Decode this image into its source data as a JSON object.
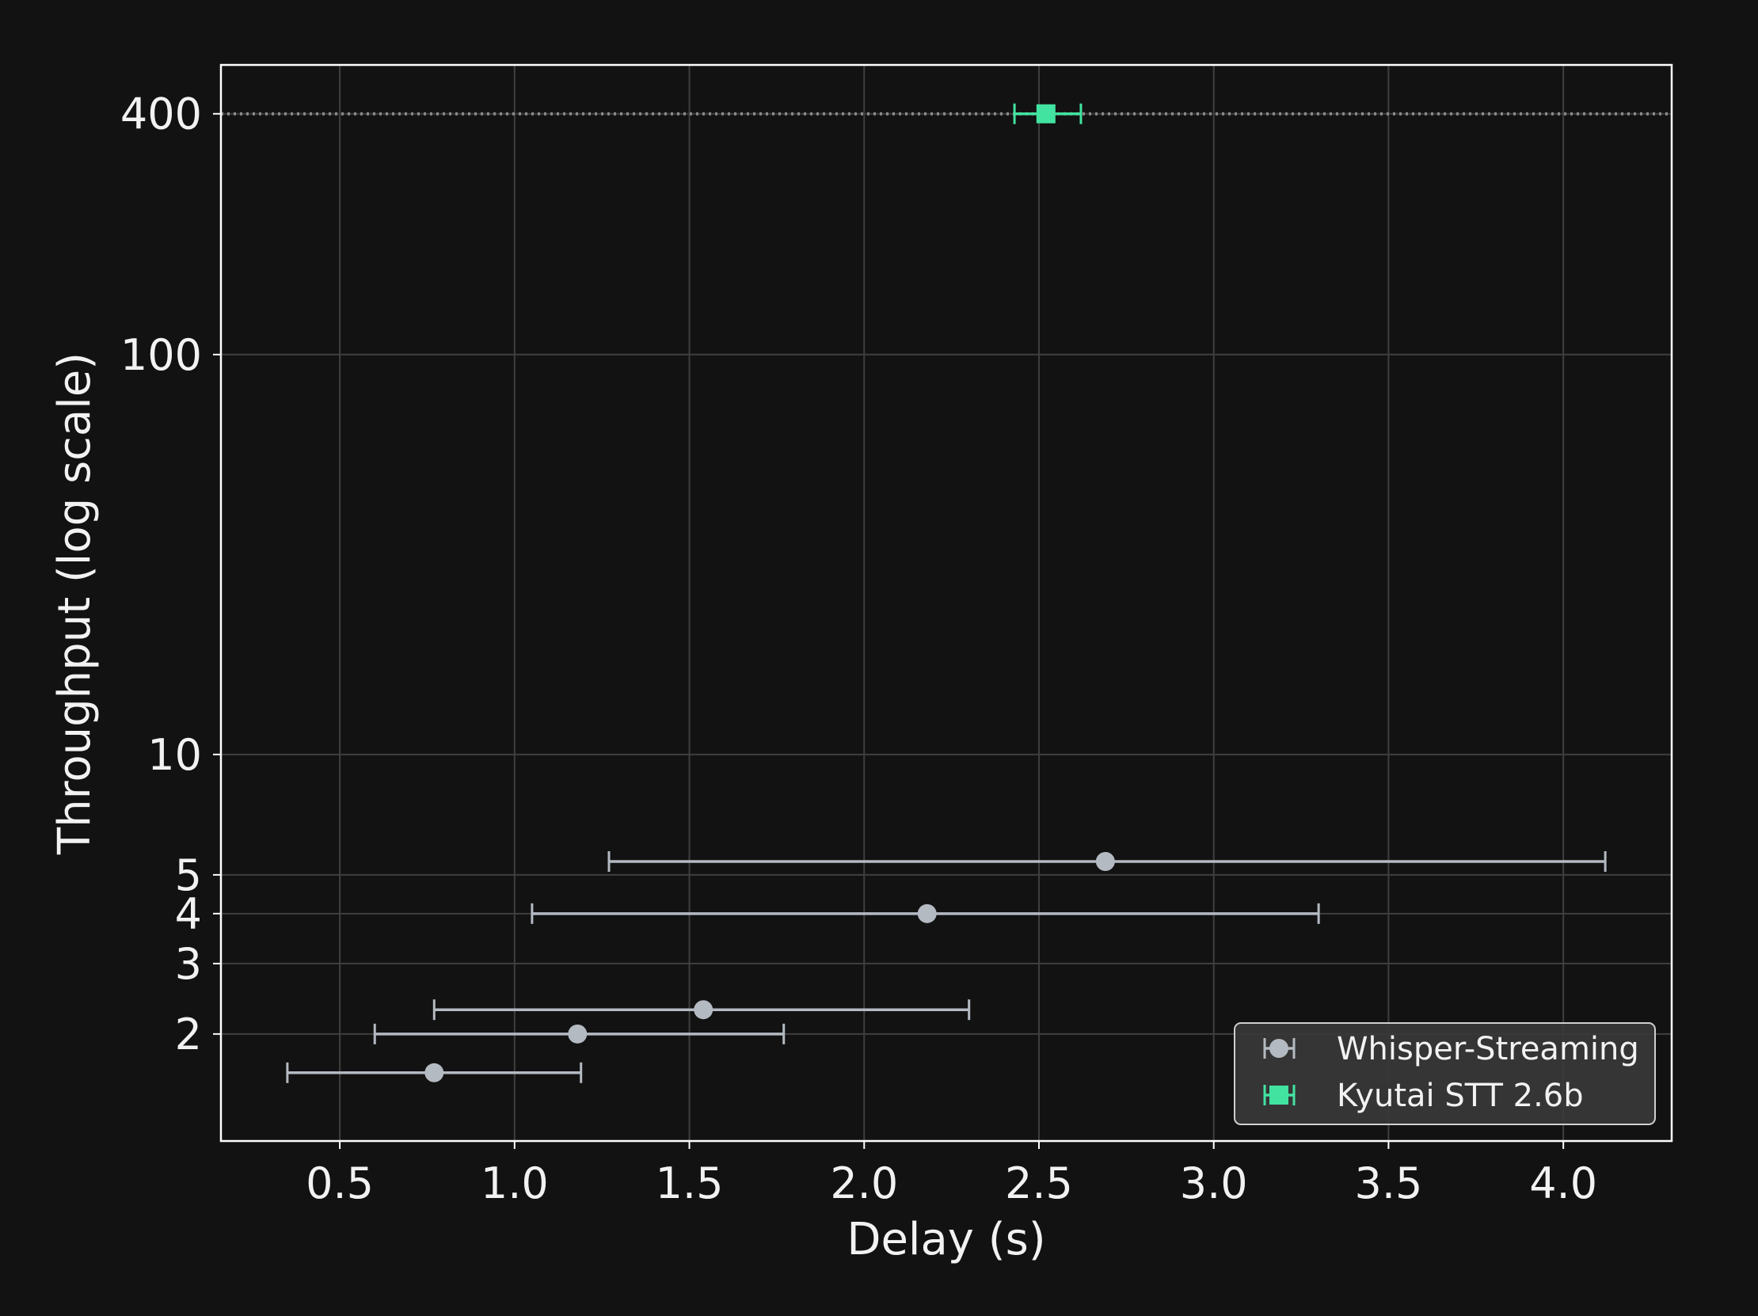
{
  "chart_data": {
    "type": "scatter",
    "title": "",
    "xlabel": "Delay (s)",
    "ylabel": "Throughput (log scale)",
    "xscale": "linear",
    "yscale": "log",
    "xlim": [
      0.16,
      4.31
    ],
    "ylim": [
      1.08,
      530
    ],
    "xticks": [
      0.5,
      1.0,
      1.5,
      2.0,
      2.5,
      3.0,
      3.5,
      4.0
    ],
    "xtick_labels": [
      "0.5",
      "1.0",
      "1.5",
      "2.0",
      "2.5",
      "3.0",
      "3.5",
      "4.0"
    ],
    "yticks": [
      2,
      3,
      4,
      5,
      10,
      100,
      400
    ],
    "ytick_labels": [
      "2",
      "3",
      "4",
      "5",
      "10",
      "100",
      "400"
    ],
    "grid": true,
    "legend_position": "lower-right",
    "reference_line": {
      "y": 400,
      "style": "dotted"
    },
    "colors": {
      "background": "#121212",
      "axes_edge": "#ffffff",
      "grid": "#3f3f3f",
      "text": "#f2f2f2",
      "whisper": "#b4bac2",
      "kyutai": "#42e3a1",
      "legend_bg": "#383838",
      "reference_line": "#8a8a8a"
    },
    "series": [
      {
        "name": "Whisper-Streaming",
        "marker": "circle",
        "color": "#b4bac2",
        "points": [
          {
            "x": 0.77,
            "y": 1.6,
            "xerr_low": 0.35,
            "xerr_high": 1.19
          },
          {
            "x": 1.18,
            "y": 2.0,
            "xerr_low": 0.6,
            "xerr_high": 1.77
          },
          {
            "x": 1.54,
            "y": 2.3,
            "xerr_low": 0.77,
            "xerr_high": 2.3
          },
          {
            "x": 2.18,
            "y": 4.0,
            "xerr_low": 1.05,
            "xerr_high": 3.3
          },
          {
            "x": 2.69,
            "y": 5.4,
            "xerr_low": 1.27,
            "xerr_high": 4.12
          }
        ]
      },
      {
        "name": "Kyutai STT 2.6b",
        "marker": "square",
        "color": "#42e3a1",
        "points": [
          {
            "x": 2.52,
            "y": 400,
            "xerr_low": 2.43,
            "xerr_high": 2.62
          }
        ]
      }
    ]
  }
}
